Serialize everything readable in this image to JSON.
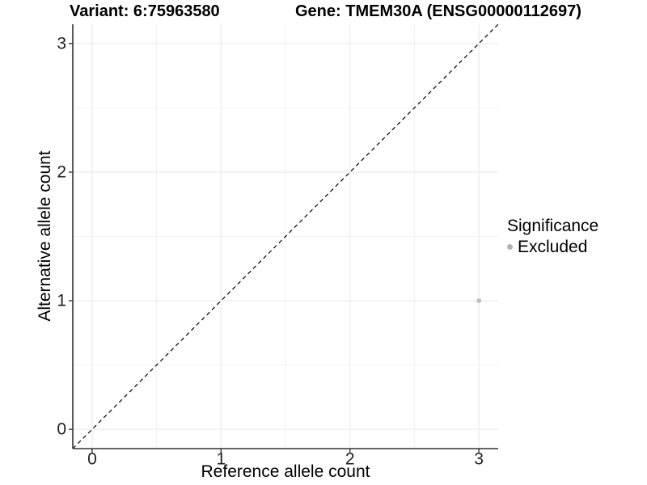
{
  "titles": {
    "variant": "Variant: 6:75963580",
    "gene": "Gene: TMEM30A (ENSG00000112697)"
  },
  "legend": {
    "title": "Significance",
    "items": [
      {
        "label": "Excluded",
        "color": "#b3b3b3"
      }
    ]
  },
  "colors": {
    "background": "#ffffff",
    "axis": "#333333",
    "grid_major": "#e7e7e7",
    "grid_minor": "#f2f2f2",
    "point": "#bebebe",
    "reference_line": "#000000",
    "text": "#000000"
  },
  "chart_data": {
    "type": "scatter",
    "title": "Variant: 6:75963580   Gene: TMEM30A (ENSG00000112697)",
    "xlabel": "Reference allele count",
    "ylabel": "Alternative allele count",
    "xlim": [
      -0.15,
      3.15
    ],
    "ylim": [
      -0.15,
      3.15
    ],
    "x_ticks": [
      0,
      1,
      2,
      3
    ],
    "y_ticks": [
      0,
      1,
      2,
      3
    ],
    "x_minor_ticks": [
      0.5,
      1.5,
      2.5
    ],
    "y_minor_ticks": [
      0.5,
      1.5,
      2.5
    ],
    "grid": true,
    "legend_position": "right",
    "series": [
      {
        "name": "Excluded",
        "color": "#bebebe",
        "points": [
          {
            "x": 3,
            "y": 1
          }
        ]
      }
    ],
    "reference_line": {
      "type": "identity",
      "style": "dashed",
      "color": "#000000"
    }
  }
}
